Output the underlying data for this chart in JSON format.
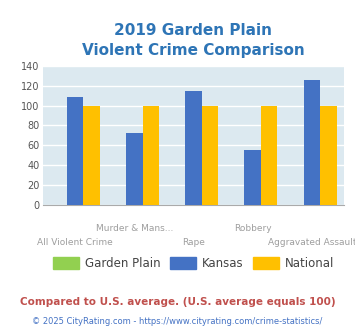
{
  "title_line1": "2019 Garden Plain",
  "title_line2": "Violent Crime Comparison",
  "categories": [
    "All Violent Crime",
    "Murder & Mans...",
    "Rape",
    "Robbery",
    "Aggravated Assault"
  ],
  "label_row1": [
    "",
    "Murder & Mans...",
    "",
    "Robbery",
    ""
  ],
  "label_row2": [
    "All Violent Crime",
    "",
    "Rape",
    "",
    "Aggravated Assault"
  ],
  "series": {
    "Garden Plain": [
      0,
      0,
      0,
      0,
      0
    ],
    "Kansas": [
      109,
      72,
      115,
      55,
      126
    ],
    "National": [
      100,
      100,
      100,
      100,
      100
    ]
  },
  "series_names": [
    "Garden Plain",
    "Kansas",
    "National"
  ],
  "colors": {
    "Garden Plain": "#92d050",
    "Kansas": "#4472c4",
    "National": "#ffc000"
  },
  "ylim": [
    0,
    140
  ],
  "yticks": [
    0,
    20,
    40,
    60,
    80,
    100,
    120,
    140
  ],
  "bg_color": "#dce9f0",
  "title_color": "#2E75B6",
  "xlabel_color": "#9e9e9e",
  "legend_text_color": "#444444",
  "note_text": "Compared to U.S. average. (U.S. average equals 100)",
  "note_color": "#c0504d",
  "footer_text": "© 2025 CityRating.com - https://www.cityrating.com/crime-statistics/",
  "footer_color": "#4472c4",
  "grid_color": "#ffffff",
  "bar_width": 0.28
}
